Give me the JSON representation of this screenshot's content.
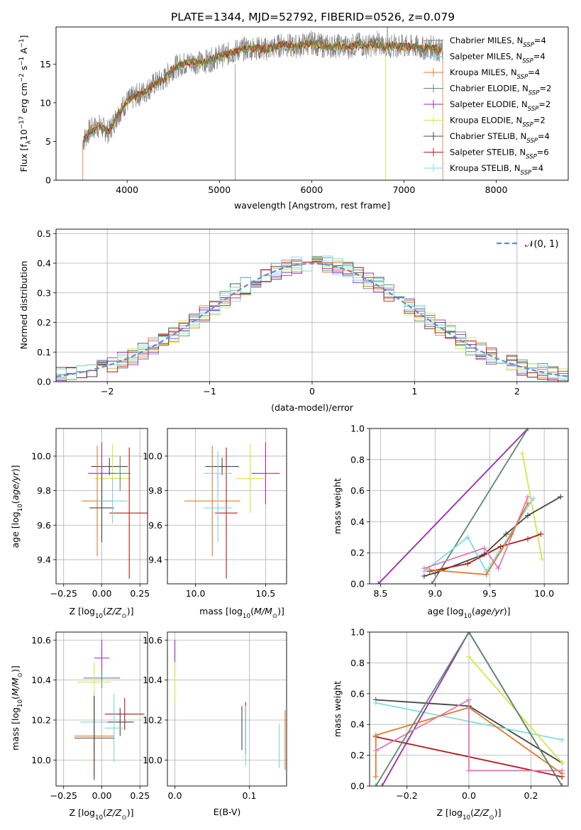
{
  "figure_title": "PLATE=1344, MJD=52792, FIBERID=0526, z=0.079",
  "series_styles": [
    {
      "name": "Chabrier MILES, N",
      "sub": "SSP",
      "tail": "=4",
      "color": "#808080"
    },
    {
      "name": "Salpeter MILES, N",
      "sub": "SSP",
      "tail": "=4",
      "color": "#7ad7dc"
    },
    {
      "name": "Kroupa MILES, N",
      "sub": "SSP",
      "tail": "=4",
      "color": "#e07b2c"
    },
    {
      "name": "Chabrier ELODIE, N",
      "sub": "SSP",
      "tail": "=2",
      "color": "#5b8a6a"
    },
    {
      "name": "Salpeter ELODIE, N",
      "sub": "SSP",
      "tail": "=2",
      "color": "#9a2ab5"
    },
    {
      "name": "Kroupa ELODIE, N",
      "sub": "SSP",
      "tail": "=2",
      "color": "#d4e64a"
    },
    {
      "name": "Chabrier STELIB, N",
      "sub": "SSP",
      "tail": "=4",
      "color": "#444444"
    },
    {
      "name": "Salpeter STELIB, N",
      "sub": "SSP",
      "tail": "=6",
      "color": "#b31b1b"
    },
    {
      "name": "Kroupa STELIB, N",
      "sub": "SSP",
      "tail": "=4",
      "color": "#7fdde0"
    }
  ],
  "chart_data": [
    {
      "type": "line",
      "id": "spectrum",
      "xlabel": "wavelength [Angstrom, rest frame]",
      "ylabel": "Flux [f",
      "ylabel_full": "Flux [fλ10⁻¹⁷ erg cm⁻² s⁻¹ A⁻¹]",
      "xlim": [
        3230,
        8780
      ],
      "ylim": [
        0,
        19.8
      ],
      "xticks": [
        4000,
        5000,
        6000,
        7000,
        8000
      ],
      "yticks": [
        0,
        5,
        10,
        15
      ],
      "legend_position": "right",
      "x": [
        3520,
        3600,
        3700,
        3800,
        3900,
        4000,
        4100,
        4200,
        4300,
        4400,
        4500,
        4600,
        4700,
        4800,
        4900,
        5000,
        5100,
        5200,
        5300,
        5400,
        5500,
        5600,
        5700,
        5800,
        5900,
        6000,
        6100,
        6200,
        6300,
        6400,
        6500,
        6600,
        6700,
        6800,
        6900,
        7000,
        7100,
        7200,
        7300,
        7400
      ],
      "y": [
        5.0,
        6.5,
        7.0,
        6.2,
        8.5,
        10.2,
        10.9,
        11.5,
        12.5,
        13.0,
        14.5,
        15.0,
        15.3,
        15.2,
        15.5,
        16.0,
        16.3,
        16.8,
        17.0,
        17.1,
        16.9,
        17.2,
        17.6,
        17.2,
        17.5,
        17.8,
        17.4,
        17.3,
        17.4,
        17.2,
        17.6,
        17.3,
        17.6,
        17.2,
        17.5,
        17.2,
        17.3,
        17.0,
        17.2,
        16.7
      ]
    },
    {
      "type": "bar",
      "id": "residual-histogram",
      "xlabel": "(data-model)/error",
      "ylabel": "Normed distribution",
      "xlim": [
        -2.5,
        2.5
      ],
      "ylim": [
        0,
        0.515
      ],
      "xticks": [
        -2,
        -1,
        0,
        1,
        2
      ],
      "yticks": [
        0.0,
        0.1,
        0.2,
        0.3,
        0.4,
        0.5
      ],
      "legend": "𝒩(0, 1)",
      "legend_position": "top-right",
      "grid": true
    },
    {
      "type": "scatter",
      "id": "age-vs-Z",
      "xlabel": "Z [log",
      "xlabel_full": "Z [log10(Z/Z⊙)]",
      "ylabel_full": "age  [log10(age/yr)]",
      "xlim": [
        -0.3,
        0.3
      ],
      "ylim": [
        9.26,
        10.16
      ],
      "xticks": [
        -0.25,
        0.0,
        0.25
      ],
      "yticks": [
        9.4,
        9.6,
        9.8,
        10.0
      ],
      "points": [
        {
          "x": 0.05,
          "xerr": 0.12,
          "y": 9.94,
          "yerr": 0.05
        },
        {
          "x": 0.0,
          "xerr": 0.09,
          "y": 9.9,
          "yerr": 0.18
        },
        {
          "x": 0.07,
          "xerr": 0.12,
          "y": 9.87,
          "yerr": 0.2
        },
        {
          "x": -0.03,
          "xerr": 0.1,
          "y": 9.74,
          "yerr": 0.32
        },
        {
          "x": 0.18,
          "xerr": 0.13,
          "y": 9.67,
          "yerr": 0.38
        },
        {
          "x": 0.0,
          "xerr": 0.08,
          "y": 9.7,
          "yerr": 0.2
        },
        {
          "x": 0.07,
          "xerr": 0.1,
          "y": 9.74,
          "yerr": 0.13
        },
        {
          "x": 0.12,
          "xerr": 0.07,
          "y": 9.9,
          "yerr": 0.1
        }
      ]
    },
    {
      "type": "scatter",
      "id": "age-vs-mass",
      "xlabel_full": "mass [log10(M/M⊙)]",
      "xlim": [
        9.8,
        10.65
      ],
      "ylim": [
        9.26,
        10.16
      ],
      "xticks": [
        10.0,
        10.5
      ],
      "yticks": [
        9.4,
        9.6,
        9.8,
        10.0
      ],
      "points": [
        {
          "x": 10.19,
          "xerr": 0.12,
          "y": 9.94,
          "yerr": 0.05
        },
        {
          "x": 10.5,
          "xerr": 0.1,
          "y": 9.9,
          "yerr": 0.18
        },
        {
          "x": 10.39,
          "xerr": 0.1,
          "y": 9.87,
          "yerr": 0.2
        },
        {
          "x": 10.12,
          "xerr": 0.2,
          "y": 9.74,
          "yerr": 0.32
        },
        {
          "x": 10.22,
          "xerr": 0.08,
          "y": 9.67,
          "yerr": 0.38
        },
        {
          "x": 10.16,
          "xerr": 0.1,
          "y": 9.7,
          "yerr": 0.2
        },
        {
          "x": 10.16,
          "xerr": 0.1,
          "y": 9.9,
          "yerr": 0.13
        }
      ]
    },
    {
      "type": "line",
      "id": "mass-weight-vs-age",
      "xlabel_full": "age  [log10(age/yr)]",
      "ylabel": "mass weight",
      "xlim": [
        8.4,
        10.22
      ],
      "ylim": [
        0,
        1.0
      ],
      "xticks": [
        8.5,
        9.0,
        9.5,
        10.0
      ],
      "yticks": [
        0.0,
        0.2,
        0.4,
        0.6,
        0.8,
        1.0
      ],
      "grid": true,
      "series": [
        {
          "x": [
            8.48,
            9.85
          ],
          "y": [
            0.0,
            1.0
          ]
        },
        {
          "x": [
            8.97,
            9.85
          ],
          "y": [
            0.0,
            1.0
          ]
        },
        {
          "x": [
            9.8,
            9.98
          ],
          "y": [
            0.84,
            0.16
          ]
        },
        {
          "x": [
            8.9,
            9.0,
            9.45,
            9.65,
            9.85,
            10.15
          ],
          "y": [
            0.05,
            0.07,
            0.19,
            0.32,
            0.44,
            0.56
          ]
        },
        {
          "x": [
            8.9,
            9.3,
            9.47,
            9.9
          ],
          "y": [
            0.08,
            0.3,
            0.08,
            0.55
          ]
        },
        {
          "x": [
            8.95,
            9.3,
            9.6,
            9.85,
            9.97
          ],
          "y": [
            0.08,
            0.13,
            0.24,
            0.29,
            0.32
          ]
        },
        {
          "x": [
            8.9,
            9.45,
            9.58,
            9.85
          ],
          "y": [
            0.1,
            0.23,
            0.1,
            0.56
          ]
        },
        {
          "x": [
            8.95,
            9.47,
            9.7,
            9.85
          ],
          "y": [
            0.09,
            0.06,
            0.32,
            0.52
          ]
        }
      ]
    },
    {
      "type": "scatter",
      "id": "mass-vs-Z",
      "xlabel_full": "Z [log10(Z/Z⊙)]",
      "ylabel_full": "mass [log10(M/M⊙)]",
      "xlim": [
        -0.3,
        0.3
      ],
      "ylim": [
        9.87,
        10.64
      ],
      "xticks": [
        -0.25,
        0.0,
        0.25
      ],
      "yticks": [
        10.0,
        10.2,
        10.4,
        10.6
      ],
      "points": [
        {
          "x": -0.0,
          "xerr": 0.05,
          "y": 10.51,
          "yerr": 0.09
        },
        {
          "x": 0.0,
          "xerr": 0.12,
          "y": 10.41,
          "yerr": 0.05
        },
        {
          "x": -0.05,
          "xerr": 0.11,
          "y": 10.39,
          "yerr": 0.1
        },
        {
          "x": 0.15,
          "xerr": 0.13,
          "y": 10.23,
          "yerr": 0.08
        },
        {
          "x": 0.12,
          "xerr": 0.09,
          "y": 10.19,
          "yerr": 0.07
        },
        {
          "x": -0.05,
          "xerr": 0.09,
          "y": 10.19,
          "yerr": 0.15
        },
        {
          "x": 0.08,
          "xerr": 0.06,
          "y": 10.16,
          "yerr": 0.17
        },
        {
          "x": -0.05,
          "xerr": 0.13,
          "y": 10.12,
          "yerr": 0.2
        },
        {
          "x": -0.05,
          "xerr": 0.13,
          "y": 10.11,
          "yerr": 0.21
        }
      ]
    },
    {
      "type": "scatter",
      "id": "mass-vs-ebv",
      "xlabel": "E(B-V)",
      "xlim": [
        -0.01,
        0.15
      ],
      "ylim": [
        9.87,
        10.64
      ],
      "xticks": [
        0.0,
        0.1
      ],
      "yticks": [
        10.0,
        10.2,
        10.4,
        10.6
      ],
      "points": [
        {
          "x": 0.0,
          "y": 10.51,
          "yerr": 0.09
        },
        {
          "x": 0.0,
          "y": 10.39,
          "yerr": 0.1
        },
        {
          "x": 0.09,
          "y": 10.16,
          "yerr": 0.11
        },
        {
          "x": 0.095,
          "y": 10.16,
          "yerr": 0.13
        },
        {
          "x": 0.095,
          "y": 10.12,
          "yerr": 0.15
        },
        {
          "x": 0.14,
          "y": 10.07,
          "yerr": 0.11
        },
        {
          "x": 0.148,
          "y": 10.1,
          "yerr": 0.15
        }
      ]
    },
    {
      "type": "line",
      "id": "mass-weight-vs-Z",
      "xlabel_full": "Z [log10(Z/Z⊙)]",
      "ylabel": "mass weight",
      "xlim": [
        -0.32,
        0.32
      ],
      "ylim": [
        0,
        1.0
      ],
      "xticks": [
        -0.2,
        0.0,
        0.2
      ],
      "yticks": [
        0.0,
        0.2,
        0.4,
        0.6,
        0.8,
        1.0
      ],
      "grid": true,
      "series": [
        {
          "x": [
            -0.3,
            0.0,
            0.3
          ],
          "y": [
            0.56,
            0.52,
            0.15
          ]
        },
        {
          "x": [
            -0.3,
            0.3
          ],
          "y": [
            0.54,
            0.3
          ]
        },
        {
          "x": [
            0.0,
            0.3
          ],
          "y": [
            0.84,
            0.15
          ]
        },
        {
          "x": [
            -0.28,
            0.0,
            0.3
          ],
          "y": [
            0.0,
            1.0,
            0.0
          ]
        },
        {
          "x": [
            -0.3,
            0.3
          ],
          "y": [
            0.32,
            0.06
          ]
        },
        {
          "x": [
            -0.3,
            -0.3,
            0.0,
            0.3
          ],
          "y": [
            0.06,
            0.33,
            0.51,
            0.08
          ]
        },
        {
          "x": [
            -0.3,
            0.0,
            0.0,
            0.3
          ],
          "y": [
            0.23,
            0.56,
            0.1,
            0.1
          ]
        },
        {
          "x": [
            -0.3,
            0.0,
            0.3
          ],
          "y": [
            0.0,
            1.0,
            0.0
          ]
        }
      ]
    }
  ]
}
